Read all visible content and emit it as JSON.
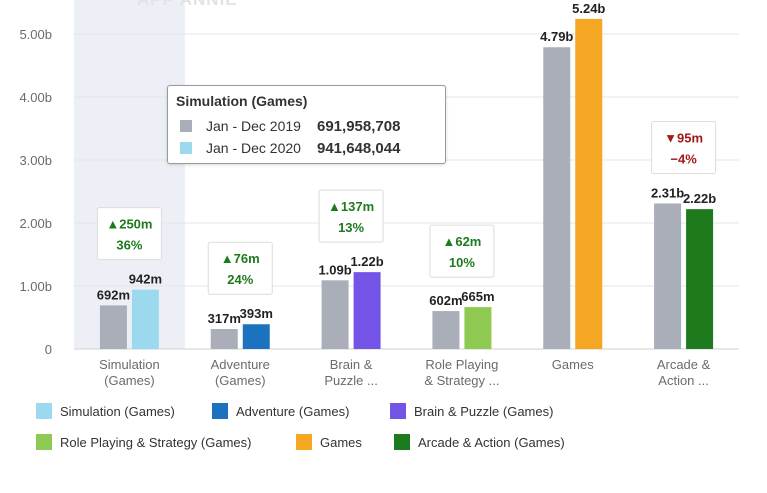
{
  "watermark": "APP ANNIE",
  "tooltip": {
    "title": "Simulation (Games)",
    "rows": [
      {
        "period": "Jan - Dec 2019",
        "value": "691,958,708",
        "color": "#a9aeb9"
      },
      {
        "period": "Jan - Dec 2020",
        "value": "941,648,044",
        "color": "#9dd9ee"
      }
    ]
  },
  "legend": [
    {
      "label": "Simulation (Games)",
      "color": "#9dd9ee"
    },
    {
      "label": "Adventure (Games)",
      "color": "#1b73c0"
    },
    {
      "label": "Brain & Puzzle (Games)",
      "color": "#7454e6"
    },
    {
      "label": "Role Playing & Strategy (Games)",
      "color": "#8ec952"
    },
    {
      "label": "Games",
      "color": "#f5a623"
    },
    {
      "label": "Arcade & Action (Games)",
      "color": "#1d7a1d"
    }
  ],
  "chart_data": {
    "type": "bar",
    "ylim": [
      0,
      5.3
    ],
    "yticks": [
      "0",
      "1.00b",
      "2.00b",
      "3.00b",
      "4.00b",
      "5.00b"
    ],
    "highlighted_category": 0,
    "categories": [
      {
        "lines": [
          "Simulation",
          "(Games)"
        ],
        "values": [
          0.692,
          0.942
        ],
        "labels": [
          "692m",
          "942m"
        ],
        "colors": [
          "#a9aeb9",
          "#9dd9ee"
        ],
        "change": {
          "dir": "up",
          "abs": "250m",
          "pct": "36%"
        }
      },
      {
        "lines": [
          "Adventure",
          "(Games)"
        ],
        "values": [
          0.317,
          0.393
        ],
        "labels": [
          "317m",
          "393m"
        ],
        "colors": [
          "#a9aeb9",
          "#1b73c0"
        ],
        "change": {
          "dir": "up",
          "abs": "76m",
          "pct": "24%"
        }
      },
      {
        "lines": [
          "Brain &",
          "Puzzle ..."
        ],
        "values": [
          1.09,
          1.22
        ],
        "labels": [
          "1.09b",
          "1.22b"
        ],
        "colors": [
          "#a9aeb9",
          "#7454e6"
        ],
        "change": {
          "dir": "up",
          "abs": "137m",
          "pct": "13%"
        }
      },
      {
        "lines": [
          "Role Playing",
          "& Strategy ..."
        ],
        "values": [
          0.602,
          0.665
        ],
        "labels": [
          "602m",
          "665m"
        ],
        "colors": [
          "#a9aeb9",
          "#8ec952"
        ],
        "change": {
          "dir": "up",
          "abs": "62m",
          "pct": "10%"
        }
      },
      {
        "lines": [
          "Games"
        ],
        "values": [
          4.79,
          5.24
        ],
        "labels": [
          "4.79b",
          "5.24b"
        ],
        "colors": [
          "#a9aeb9",
          "#f5a623"
        ],
        "change": null
      },
      {
        "lines": [
          "Arcade &",
          "Action ..."
        ],
        "values": [
          2.31,
          2.22
        ],
        "labels": [
          "2.31b",
          "2.22b"
        ],
        "colors": [
          "#a9aeb9",
          "#1d7a1d"
        ],
        "change": {
          "dir": "down",
          "abs": "95m",
          "pct": "−4%"
        }
      }
    ],
    "up_color": "#1d7a1d",
    "down_color": "#a11a1a"
  }
}
